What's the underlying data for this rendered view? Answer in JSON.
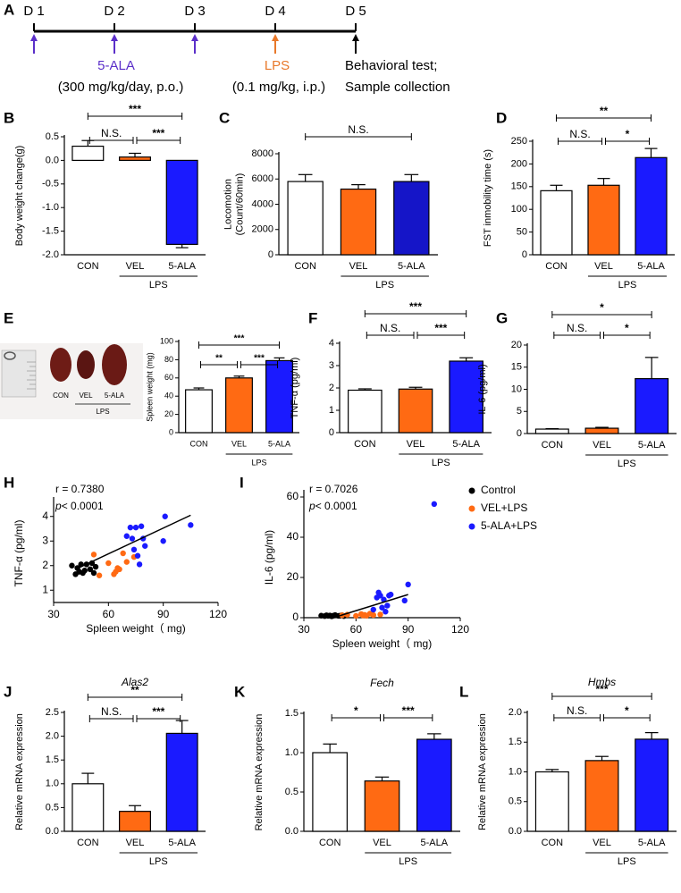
{
  "timeline": {
    "panel": "A",
    "days": [
      "D 1",
      "D 2",
      "D 3",
      "D 4",
      "D 5"
    ],
    "treatments": [
      {
        "label": "5-ALA",
        "detail": "(300 mg/kg/day, p.o.)",
        "color": "#5b2fc9"
      },
      {
        "label": "LPS",
        "detail": "(0.1 mg/kg, i.p.)",
        "color": "#e8782a"
      }
    ],
    "endpoint": [
      "Behavioral test;",
      "Sample collection"
    ]
  },
  "chart_data": [
    {
      "type": "bar",
      "panel": "B",
      "ylabel": "Body weight change(g)",
      "categories": [
        "CON",
        "VEL",
        "5-ALA"
      ],
      "colors": [
        "#ffffff",
        "#ff6a13",
        "#1a1aff"
      ],
      "values": [
        0.3,
        0.07,
        -1.78
      ],
      "errors": [
        0.12,
        0.08,
        0.07
      ],
      "ylim": [
        -2.0,
        0.5
      ],
      "yticks": [
        {
          "value": -2.0,
          "label": "-2.0"
        },
        {
          "value": -1.5,
          "label": "-1.5"
        },
        {
          "value": -1.0,
          "label": "-1.0"
        },
        {
          "value": -0.5,
          "label": "-0.5"
        },
        {
          "value": 0,
          "label": "0.0"
        },
        {
          "value": 0.5,
          "label": "0.5"
        }
      ],
      "group": {
        "label": "LPS",
        "from": 1,
        "to": 2
      },
      "comparisons": [
        {
          "label": "***",
          "from": 0,
          "to": 2
        },
        {
          "label": "N.S.",
          "from": 0,
          "to": 1
        },
        {
          "label": "***",
          "from": 1,
          "to": 2
        }
      ]
    },
    {
      "type": "bar",
      "panel": "C",
      "ylabel": [
        "Locomotion",
        "(Count/60min)"
      ],
      "categories": [
        "CON",
        "VEL",
        "5-ALA"
      ],
      "colors": [
        "#ffffff",
        "#ff6a13",
        "#1515c8"
      ],
      "values": [
        5800,
        5200,
        5800
      ],
      "errors": [
        550,
        350,
        550
      ],
      "ylim": [
        0,
        8000
      ],
      "yticks": [
        0,
        2000,
        4000,
        6000,
        8000
      ],
      "group": {
        "label": "LPS",
        "from": 1,
        "to": 2
      },
      "comparisons": [
        {
          "label": "N.S.",
          "from": 0,
          "to": 2
        }
      ]
    },
    {
      "type": "bar",
      "panel": "D",
      "ylabel": "FST inmobility time (s)",
      "categories": [
        "CON",
        "VEL",
        "5-ALA"
      ],
      "colors": [
        "#ffffff",
        "#ff6a13",
        "#1a1aff"
      ],
      "values": [
        141,
        153,
        214
      ],
      "errors": [
        12,
        15,
        20
      ],
      "ylim": [
        0,
        250
      ],
      "yticks": [
        0,
        50,
        100,
        150,
        200,
        250
      ],
      "group": {
        "label": "LPS",
        "from": 1,
        "to": 2
      },
      "comparisons": [
        {
          "label": "**",
          "from": 0,
          "to": 2
        },
        {
          "label": "N.S.",
          "from": 0,
          "to": 1
        },
        {
          "label": "*",
          "from": 1,
          "to": 2
        }
      ]
    },
    {
      "type": "bar",
      "panel": "E",
      "ylabel": "Spleen weight (mg)",
      "photo_labels": [
        "CON",
        "VEL",
        "5-ALA"
      ],
      "photo_group": "LPS",
      "categories": [
        "CON",
        "VEL",
        "5-ALA"
      ],
      "colors": [
        "#ffffff",
        "#ff6a13",
        "#1a1aff"
      ],
      "values": [
        47,
        60,
        79
      ],
      "errors": [
        2,
        2,
        3
      ],
      "ylim": [
        0,
        100
      ],
      "yticks": [
        0,
        20,
        40,
        60,
        80,
        100
      ],
      "group": {
        "label": "LPS",
        "from": 1,
        "to": 2
      },
      "comparisons": [
        {
          "label": "***",
          "from": 0,
          "to": 2
        },
        {
          "label": "**",
          "from": 0,
          "to": 1
        },
        {
          "label": "***",
          "from": 1,
          "to": 2
        }
      ]
    },
    {
      "type": "bar",
      "panel": "F",
      "ylabel": "TNF-α (pg/ml)",
      "categories": [
        "CON",
        "VEL",
        "5-ALA"
      ],
      "colors": [
        "#ffffff",
        "#ff6a13",
        "#1a1aff"
      ],
      "values": [
        1.9,
        1.95,
        3.2
      ],
      "errors": [
        0.06,
        0.08,
        0.15
      ],
      "ylim": [
        0,
        4
      ],
      "yticks": [
        0,
        1,
        2,
        3,
        4
      ],
      "group": {
        "label": "LPS",
        "from": 1,
        "to": 2
      },
      "comparisons": [
        {
          "label": "***",
          "from": 0,
          "to": 2
        },
        {
          "label": "N.S.",
          "from": 0,
          "to": 1
        },
        {
          "label": "***",
          "from": 1,
          "to": 2
        }
      ]
    },
    {
      "type": "bar",
      "panel": "G",
      "ylabel": "IL-6 (pg/ml)",
      "categories": [
        "CON",
        "VEL",
        "5-ALA"
      ],
      "colors": [
        "#ffffff",
        "#ff6a13",
        "#1a1aff"
      ],
      "values": [
        1.0,
        1.2,
        12.4
      ],
      "errors": [
        0.1,
        0.2,
        4.8
      ],
      "ylim": [
        0,
        20
      ],
      "yticks": [
        0,
        5,
        10,
        15,
        20
      ],
      "group": {
        "label": "LPS",
        "from": 1,
        "to": 2
      },
      "comparisons": [
        {
          "label": "*",
          "from": 0,
          "to": 2
        },
        {
          "label": "N.S.",
          "from": 0,
          "to": 1
        },
        {
          "label": "*",
          "from": 1,
          "to": 2
        }
      ]
    },
    {
      "type": "scatter",
      "panel": "H",
      "xlabel": "Spleen weight（ mg)",
      "ylabel": "TNF-α (pg/ml)",
      "r_text": "r = 0.7380",
      "p_symbol": "p",
      "p_text": "< 0.0001",
      "xlim": [
        30,
        120
      ],
      "xticks": [
        30,
        60,
        90,
        120
      ],
      "ylim": [
        0.5,
        4.5
      ],
      "yticks": [
        1,
        2,
        3,
        4
      ],
      "series": [
        {
          "color": "#000000",
          "x": [
            40,
            42,
            43,
            44,
            45,
            46,
            47,
            48,
            50,
            51,
            52,
            53
          ],
          "values": [
            2.0,
            1.65,
            1.9,
            1.75,
            2.05,
            1.7,
            1.8,
            2.05,
            1.85,
            2.1,
            1.7,
            1.95
          ]
        },
        {
          "color": "#ff6a13",
          "x": [
            52,
            55,
            60,
            63,
            64,
            65,
            66,
            68,
            70,
            74
          ],
          "values": [
            2.45,
            1.6,
            2.1,
            1.65,
            1.75,
            1.9,
            1.85,
            2.5,
            2.15,
            2.35
          ]
        },
        {
          "color": "#1a1aff",
          "x": [
            70,
            72,
            73,
            74,
            75,
            76,
            77,
            78,
            79,
            80,
            90,
            91,
            105
          ],
          "values": [
            3.2,
            3.55,
            3.1,
            2.65,
            3.55,
            2.4,
            2.05,
            3.6,
            3.1,
            2.8,
            3.0,
            4.0,
            3.65
          ]
        }
      ],
      "fit": {
        "x": [
          42,
          105
        ],
        "values": [
          1.85,
          4.05
        ]
      }
    },
    {
      "type": "scatter",
      "panel": "I",
      "xlabel": "Spleen weight（ mg)",
      "ylabel": "IL-6 (pg/ml)",
      "r_text": "r = 0.7026",
      "p_symbol": "p",
      "p_text": "< 0.0001",
      "xlim": [
        30,
        120
      ],
      "xticks": [
        30,
        60,
        90,
        120
      ],
      "ylim": [
        0,
        60
      ],
      "yticks": [
        0,
        20,
        40,
        60
      ],
      "series": [
        {
          "name": "Control",
          "color": "#000000",
          "x": [
            40,
            42,
            43,
            44,
            45,
            46,
            47,
            48,
            50,
            51,
            52,
            53
          ],
          "values": [
            1.0,
            0.8,
            1.2,
            0.9,
            1.1,
            0.7,
            1.0,
            1.3,
            0.9,
            1.0,
            1.2,
            0.8
          ]
        },
        {
          "name": "VEL+LPS",
          "color": "#ff6a13",
          "x": [
            52,
            55,
            60,
            63,
            64,
            65,
            66,
            68,
            70,
            74
          ],
          "values": [
            1.2,
            1.5,
            0.9,
            1.8,
            1.1,
            1.4,
            1.0,
            2.0,
            1.3,
            1.6
          ]
        },
        {
          "name": "5-ALA+LPS",
          "color": "#1a1aff",
          "x": [
            70,
            72,
            73,
            74,
            75,
            76,
            77,
            78,
            79,
            80,
            88,
            90,
            105
          ],
          "values": [
            4,
            10,
            12.5,
            11,
            5,
            9,
            3,
            6,
            11,
            11.5,
            8.5,
            16.5,
            56.5
          ]
        }
      ],
      "fit": {
        "x": [
          47,
          90
        ],
        "values": [
          0,
          11.5
        ]
      }
    },
    {
      "type": "bar",
      "panel": "J",
      "title": "Alas2",
      "ylabel": "Relative mRNA expression",
      "categories": [
        "CON",
        "VEL",
        "5-ALA"
      ],
      "colors": [
        "#ffffff",
        "#ff6a13",
        "#1a1aff"
      ],
      "values": [
        1.0,
        0.42,
        2.06
      ],
      "errors": [
        0.22,
        0.12,
        0.27
      ],
      "ylim": [
        0,
        2.5
      ],
      "yticks": [
        {
          "value": 0,
          "label": "0.0"
        },
        {
          "value": 0.5,
          "label": "0.5"
        },
        {
          "value": 1.0,
          "label": "1.0"
        },
        {
          "value": 1.5,
          "label": "1.5"
        },
        {
          "value": 2.0,
          "label": "2.0"
        },
        {
          "value": 2.5,
          "label": "2.5"
        }
      ],
      "group": {
        "label": "LPS",
        "from": 1,
        "to": 2
      },
      "comparisons": [
        {
          "label": "**",
          "from": 0,
          "to": 2
        },
        {
          "label": "N.S.",
          "from": 0,
          "to": 1
        },
        {
          "label": "***",
          "from": 1,
          "to": 2
        }
      ]
    },
    {
      "type": "bar",
      "panel": "K",
      "title": "Fech",
      "ylabel": "Relative mRNA expression",
      "categories": [
        "CON",
        "VEL",
        "5-ALA"
      ],
      "colors": [
        "#ffffff",
        "#ff6a13",
        "#1a1aff"
      ],
      "values": [
        1.0,
        0.64,
        1.17
      ],
      "errors": [
        0.11,
        0.05,
        0.07
      ],
      "ylim": [
        0,
        1.5
      ],
      "yticks": [
        {
          "value": 0,
          "label": "0.0"
        },
        {
          "value": 0.5,
          "label": "0.5"
        },
        {
          "value": 1.0,
          "label": "1.0"
        },
        {
          "value": 1.5,
          "label": "1.5"
        }
      ],
      "group": {
        "label": "LPS",
        "from": 1,
        "to": 2
      },
      "comparisons": [
        {
          "label": "*",
          "from": 0,
          "to": 1
        },
        {
          "label": "***",
          "from": 1,
          "to": 2
        }
      ]
    },
    {
      "type": "bar",
      "panel": "L",
      "title": "Hmbs",
      "ylabel": "Relative mRNA expression",
      "categories": [
        "CON",
        "VEL",
        "5-ALA"
      ],
      "colors": [
        "#ffffff",
        "#ff6a13",
        "#1a1aff"
      ],
      "values": [
        1.0,
        1.19,
        1.55
      ],
      "errors": [
        0.04,
        0.07,
        0.11
      ],
      "ylim": [
        0,
        2.0
      ],
      "yticks": [
        {
          "value": 0,
          "label": "0.0"
        },
        {
          "value": 0.5,
          "label": "0.5"
        },
        {
          "value": 1.0,
          "label": "1.0"
        },
        {
          "value": 1.5,
          "label": "1.5"
        },
        {
          "value": 2.0,
          "label": "2.0"
        }
      ],
      "group": {
        "label": "LPS",
        "from": 1,
        "to": 2
      },
      "comparisons": [
        {
          "label": "***",
          "from": 0,
          "to": 2
        },
        {
          "label": "N.S.",
          "from": 0,
          "to": 1
        },
        {
          "label": "*",
          "from": 1,
          "to": 2
        }
      ]
    }
  ]
}
